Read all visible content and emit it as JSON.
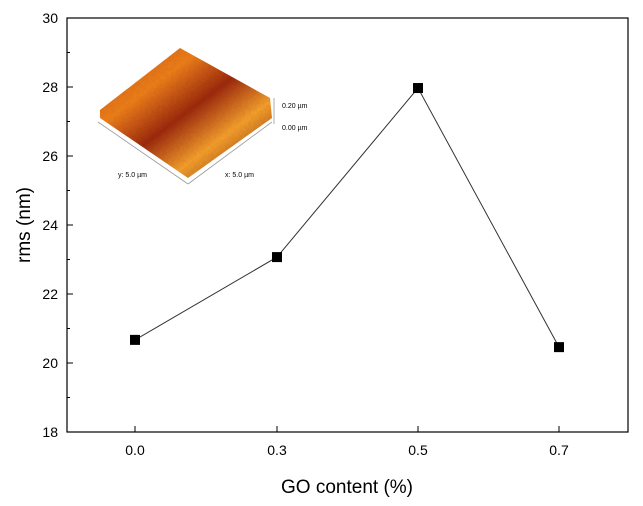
{
  "chart_data": {
    "type": "line",
    "title": "",
    "xlabel": "GO content (%)",
    "ylabel": "rms (nm)",
    "categories": [
      "0.0",
      "0.3",
      "0.5",
      "0.7"
    ],
    "series": [
      {
        "name": "rms",
        "values": [
          20.67,
          23.07,
          27.97,
          20.46
        ],
        "color": "#000000",
        "marker": "square"
      }
    ],
    "ylim": [
      18,
      30
    ],
    "yticks": [
      "18",
      "20",
      "22",
      "24",
      "26",
      "28",
      "30"
    ],
    "grid": false,
    "inset": {
      "type": "AFM 3D surface image",
      "labels": {
        "z_top": "0.20 µm",
        "z_bottom": "0.00 µm",
        "y_axis": "y: 5.0 µm",
        "x_axis": "x: 5.0 µm"
      }
    }
  }
}
